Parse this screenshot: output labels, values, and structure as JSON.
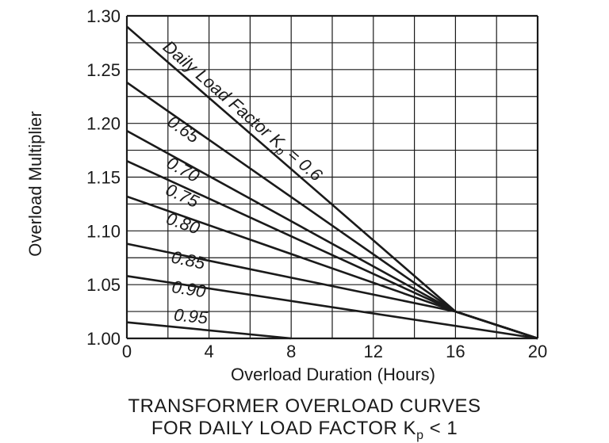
{
  "chart_data": {
    "type": "line",
    "title_lines": [
      "TRANSFORMER OVERLOAD CURVES",
      "FOR DAILY LOAD FACTOR K",
      "p",
      " < 1"
    ],
    "xlabel": "Overload Duration (Hours)",
    "ylabel": "Overload Multiplier",
    "xlim": [
      0,
      20
    ],
    "ylim": [
      1.0,
      1.3
    ],
    "x_ticks": [
      "0",
      "4",
      "8",
      "12",
      "16",
      "20"
    ],
    "y_ticks": [
      "1.00",
      "1.05",
      "1.10",
      "1.15",
      "1.20",
      "1.25",
      "1.30"
    ],
    "grid": true,
    "series": [
      {
        "name": "Daily Load Factor Kp = 0.6",
        "label": "Daily Load Factor K",
        "label_sub": "p",
        "label_tail": " = 0.6",
        "x": [
          0,
          16,
          20
        ],
        "y": [
          1.29,
          1.025,
          1.0
        ]
      },
      {
        "name": "0.65",
        "label": "0.65",
        "x": [
          0,
          16,
          20
        ],
        "y": [
          1.238,
          1.025,
          1.0
        ]
      },
      {
        "name": "0.70",
        "label": "0.70",
        "x": [
          0,
          16,
          20
        ],
        "y": [
          1.193,
          1.025,
          1.0
        ]
      },
      {
        "name": "0.75",
        "label": "0.75",
        "x": [
          0,
          16,
          20
        ],
        "y": [
          1.165,
          1.025,
          1.0
        ]
      },
      {
        "name": "0.80",
        "label": "0.80",
        "x": [
          0,
          16,
          20
        ],
        "y": [
          1.132,
          1.025,
          1.0
        ]
      },
      {
        "name": "0.85",
        "label": "0.85",
        "x": [
          0,
          16,
          20
        ],
        "y": [
          1.088,
          1.025,
          1.0
        ]
      },
      {
        "name": "0.90",
        "label": "0.90",
        "x": [
          0,
          20
        ],
        "y": [
          1.058,
          1.0
        ]
      },
      {
        "name": "0.95",
        "label": "0.95",
        "x": [
          0,
          8
        ],
        "y": [
          1.015,
          1.0
        ]
      }
    ]
  }
}
